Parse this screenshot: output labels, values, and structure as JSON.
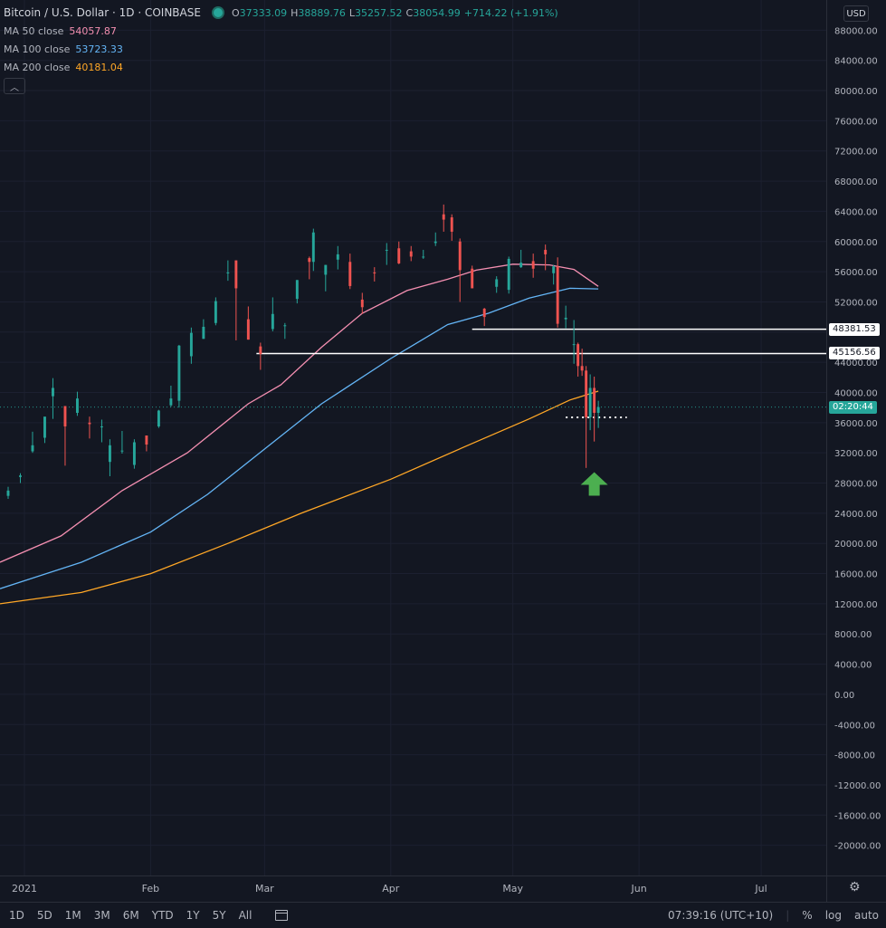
{
  "header": {
    "symbol_title": "Bitcoin / U.S. Dollar · 1D · COINBASE",
    "ohlc": {
      "o_label": "O",
      "o": "37333.09",
      "h_label": "H",
      "h": "38889.76",
      "l_label": "L",
      "l": "35257.52",
      "c_label": "C",
      "c": "38054.99",
      "change": "+714.22 (+1.91%)"
    },
    "ma": [
      {
        "label": "MA 50 close",
        "value": "54057.87",
        "color": "#f48fb1"
      },
      {
        "label": "MA 100 close",
        "value": "53723.33",
        "color": "#64b5f6"
      },
      {
        "label": "MA 200 close",
        "value": "40181.04",
        "color": "#ffa726"
      }
    ],
    "collapse_icon": "chevron-up-icon"
  },
  "price_axis": {
    "currency": "USD",
    "ticks": [
      "88000.00",
      "84000.00",
      "80000.00",
      "76000.00",
      "72000.00",
      "68000.00",
      "64000.00",
      "60000.00",
      "56000.00",
      "52000.00",
      "48000.00",
      "44000.00",
      "40000.00",
      "36000.00",
      "32000.00",
      "28000.00",
      "24000.00",
      "20000.00",
      "16000.00",
      "12000.00",
      "8000.00",
      "4000.00",
      "0.00",
      "-4000.00",
      "-8000.00",
      "-12000.00",
      "-16000.00",
      "-20000.00"
    ],
    "level_tags": [
      "48381.53",
      "45156.56"
    ],
    "countdown": "02:20:44"
  },
  "time_axis": {
    "labels": [
      "2021",
      "Feb",
      "Mar",
      "Apr",
      "May",
      "Jun",
      "Jul"
    ]
  },
  "bottom_bar": {
    "timeframes": [
      "1D",
      "5D",
      "1M",
      "3M",
      "6M",
      "YTD",
      "1Y",
      "5Y",
      "All"
    ],
    "clock": "07:39:16 (UTC+10)",
    "percent": "%",
    "log": "log",
    "auto": "auto"
  },
  "colors": {
    "background": "#131722",
    "up": "#26a69a",
    "down": "#ef5350",
    "arrow": "#4caf50"
  },
  "chart_data": {
    "type": "candlestick",
    "title": "Bitcoin / U.S. Dollar",
    "ylim": [
      -24000,
      92000
    ],
    "xlim": [
      "2020-12-26",
      "2021-07-17"
    ],
    "horizontal_levels": [
      {
        "price": 48381.53,
        "from": "2021-04-21",
        "to": "2021-07-17"
      },
      {
        "price": 45156.56,
        "from": "2021-02-27",
        "to": "2021-07-17"
      }
    ],
    "dotted_level": {
      "price": 36700,
      "from": "2021-05-14",
      "to": "2021-05-29"
    },
    "arrow_annotation": {
      "date": "2021-05-21",
      "price": 28000,
      "direction": "up"
    },
    "candles": [
      {
        "d": "2020-12-28",
        "o": 26300,
        "h": 27500,
        "l": 25900,
        "c": 27000
      },
      {
        "d": "2020-12-31",
        "o": 28800,
        "h": 29300,
        "l": 28000,
        "c": 29000
      },
      {
        "d": "2021-01-03",
        "o": 32200,
        "h": 34800,
        "l": 32000,
        "c": 33000
      },
      {
        "d": "2021-01-06",
        "o": 34000,
        "h": 36700,
        "l": 33300,
        "c": 36800
      },
      {
        "d": "2021-01-08",
        "o": 39500,
        "h": 41900,
        "l": 36500,
        "c": 40600
      },
      {
        "d": "2021-01-11",
        "o": 38200,
        "h": 38200,
        "l": 30300,
        "c": 35500
      },
      {
        "d": "2021-01-14",
        "o": 37300,
        "h": 40100,
        "l": 36900,
        "c": 39200
      },
      {
        "d": "2021-01-17",
        "o": 36000,
        "h": 36800,
        "l": 33900,
        "c": 35800
      },
      {
        "d": "2021-01-20",
        "o": 35500,
        "h": 36400,
        "l": 33400,
        "c": 35500
      },
      {
        "d": "2021-01-22",
        "o": 30800,
        "h": 33800,
        "l": 28900,
        "c": 33000
      },
      {
        "d": "2021-01-25",
        "o": 32300,
        "h": 34900,
        "l": 31900,
        "c": 32300
      },
      {
        "d": "2021-01-28",
        "o": 30400,
        "h": 33800,
        "l": 29900,
        "c": 33400
      },
      {
        "d": "2021-01-31",
        "o": 34300,
        "h": 34300,
        "l": 32200,
        "c": 33100
      },
      {
        "d": "2021-02-03",
        "o": 35500,
        "h": 37700,
        "l": 35300,
        "c": 37600
      },
      {
        "d": "2021-02-06",
        "o": 38300,
        "h": 40900,
        "l": 38100,
        "c": 39200
      },
      {
        "d": "2021-02-08",
        "o": 38900,
        "h": 46300,
        "l": 38000,
        "c": 46200
      },
      {
        "d": "2021-02-11",
        "o": 44800,
        "h": 48600,
        "l": 43800,
        "c": 47900
      },
      {
        "d": "2021-02-14",
        "o": 47100,
        "h": 49700,
        "l": 47100,
        "c": 48700
      },
      {
        "d": "2021-02-17",
        "o": 49200,
        "h": 52600,
        "l": 48900,
        "c": 52100
      },
      {
        "d": "2021-02-20",
        "o": 55900,
        "h": 57500,
        "l": 54800,
        "c": 55900
      },
      {
        "d": "2021-02-22",
        "o": 57500,
        "h": 57500,
        "l": 46900,
        "c": 53800
      },
      {
        "d": "2021-02-25",
        "o": 49700,
        "h": 51400,
        "l": 47000,
        "c": 47000
      },
      {
        "d": "2021-02-28",
        "o": 46100,
        "h": 46600,
        "l": 43000,
        "c": 45100
      },
      {
        "d": "2021-03-03",
        "o": 48400,
        "h": 52600,
        "l": 48100,
        "c": 50400
      },
      {
        "d": "2021-03-06",
        "o": 48800,
        "h": 49200,
        "l": 47100,
        "c": 48900
      },
      {
        "d": "2021-03-09",
        "o": 52400,
        "h": 54900,
        "l": 51800,
        "c": 54900
      },
      {
        "d": "2021-03-12",
        "o": 57800,
        "h": 58000,
        "l": 55000,
        "c": 57300
      },
      {
        "d": "2021-03-13",
        "o": 57300,
        "h": 61700,
        "l": 56100,
        "c": 61200
      },
      {
        "d": "2021-03-16",
        "o": 55600,
        "h": 56900,
        "l": 53400,
        "c": 56900
      },
      {
        "d": "2021-03-19",
        "o": 57600,
        "h": 59400,
        "l": 56300,
        "c": 58300
      },
      {
        "d": "2021-03-22",
        "o": 57300,
        "h": 58400,
        "l": 53700,
        "c": 54100
      },
      {
        "d": "2021-03-25",
        "o": 52300,
        "h": 53200,
        "l": 50400,
        "c": 51300
      },
      {
        "d": "2021-03-28",
        "o": 55900,
        "h": 56600,
        "l": 54700,
        "c": 55800
      },
      {
        "d": "2021-03-31",
        "o": 58800,
        "h": 59800,
        "l": 56900,
        "c": 58900
      },
      {
        "d": "2021-04-03",
        "o": 59100,
        "h": 60000,
        "l": 57000,
        "c": 57100
      },
      {
        "d": "2021-04-06",
        "o": 58700,
        "h": 59400,
        "l": 57400,
        "c": 58000
      },
      {
        "d": "2021-04-09",
        "o": 57900,
        "h": 58900,
        "l": 57700,
        "c": 58000
      },
      {
        "d": "2021-04-12",
        "o": 59800,
        "h": 61200,
        "l": 59400,
        "c": 60000
      },
      {
        "d": "2021-04-14",
        "o": 63600,
        "h": 64900,
        "l": 61300,
        "c": 62900
      },
      {
        "d": "2021-04-16",
        "o": 63200,
        "h": 63600,
        "l": 60100,
        "c": 61300
      },
      {
        "d": "2021-04-18",
        "o": 60000,
        "h": 60400,
        "l": 52000,
        "c": 56200
      },
      {
        "d": "2021-04-21",
        "o": 56400,
        "h": 56800,
        "l": 53800,
        "c": 53800
      },
      {
        "d": "2021-04-24",
        "o": 51100,
        "h": 51200,
        "l": 48800,
        "c": 50000
      },
      {
        "d": "2021-04-27",
        "o": 54000,
        "h": 55400,
        "l": 53200,
        "c": 55000
      },
      {
        "d": "2021-04-30",
        "o": 53600,
        "h": 58000,
        "l": 53100,
        "c": 57700
      },
      {
        "d": "2021-05-03",
        "o": 56600,
        "h": 58900,
        "l": 56500,
        "c": 57200
      },
      {
        "d": "2021-05-06",
        "o": 57400,
        "h": 58400,
        "l": 55200,
        "c": 56400
      },
      {
        "d": "2021-05-09",
        "o": 58900,
        "h": 59600,
        "l": 56200,
        "c": 58300
      },
      {
        "d": "2021-05-11",
        "o": 55800,
        "h": 56900,
        "l": 54300,
        "c": 56700
      },
      {
        "d": "2021-05-12",
        "o": 56700,
        "h": 57900,
        "l": 48600,
        "c": 49100
      },
      {
        "d": "2021-05-14",
        "o": 49700,
        "h": 51500,
        "l": 48500,
        "c": 49900
      },
      {
        "d": "2021-05-16",
        "o": 46400,
        "h": 49600,
        "l": 43800,
        "c": 46400
      },
      {
        "d": "2021-05-17",
        "o": 46400,
        "h": 46600,
        "l": 42100,
        "c": 43500
      },
      {
        "d": "2021-05-18",
        "o": 43500,
        "h": 45800,
        "l": 42200,
        "c": 42900
      },
      {
        "d": "2021-05-19",
        "o": 42900,
        "h": 43500,
        "l": 30000,
        "c": 36700
      },
      {
        "d": "2021-05-20",
        "o": 36700,
        "h": 42400,
        "l": 35000,
        "c": 40600
      },
      {
        "d": "2021-05-21",
        "o": 40600,
        "h": 42100,
        "l": 33500,
        "c": 37300
      },
      {
        "d": "2021-05-22",
        "o": 37300,
        "h": 38900,
        "l": 35300,
        "c": 38055
      }
    ],
    "series": [
      {
        "name": "MA 50 close",
        "color": "#f48fb1",
        "points": [
          [
            "2020-12-26",
            17500
          ],
          [
            "2021-01-10",
            21000
          ],
          [
            "2021-01-25",
            27000
          ],
          [
            "2021-02-10",
            32000
          ],
          [
            "2021-02-25",
            38500
          ],
          [
            "2021-03-05",
            41000
          ],
          [
            "2021-03-15",
            46000
          ],
          [
            "2021-03-25",
            50500
          ],
          [
            "2021-04-05",
            53500
          ],
          [
            "2021-04-15",
            55000
          ],
          [
            "2021-04-22",
            56200
          ],
          [
            "2021-05-01",
            57000
          ],
          [
            "2021-05-10",
            56900
          ],
          [
            "2021-05-16",
            56300
          ],
          [
            "2021-05-22",
            54058
          ]
        ]
      },
      {
        "name": "MA 100 close",
        "color": "#64b5f6",
        "points": [
          [
            "2020-12-26",
            14000
          ],
          [
            "2021-01-15",
            17500
          ],
          [
            "2021-02-01",
            21500
          ],
          [
            "2021-02-15",
            26500
          ],
          [
            "2021-03-01",
            32500
          ],
          [
            "2021-03-15",
            38500
          ],
          [
            "2021-04-01",
            44500
          ],
          [
            "2021-04-15",
            49000
          ],
          [
            "2021-04-25",
            50500
          ],
          [
            "2021-05-05",
            52500
          ],
          [
            "2021-05-15",
            53800
          ],
          [
            "2021-05-22",
            53723
          ]
        ]
      },
      {
        "name": "MA 200 close",
        "color": "#ffa726",
        "points": [
          [
            "2020-12-26",
            12000
          ],
          [
            "2021-01-15",
            13500
          ],
          [
            "2021-02-01",
            16000
          ],
          [
            "2021-02-20",
            20000
          ],
          [
            "2021-03-10",
            24000
          ],
          [
            "2021-04-01",
            28500
          ],
          [
            "2021-04-20",
            33000
          ],
          [
            "2021-05-05",
            36500
          ],
          [
            "2021-05-15",
            39000
          ],
          [
            "2021-05-22",
            40181
          ]
        ]
      }
    ],
    "grid": true,
    "legend_position": "top-left"
  }
}
